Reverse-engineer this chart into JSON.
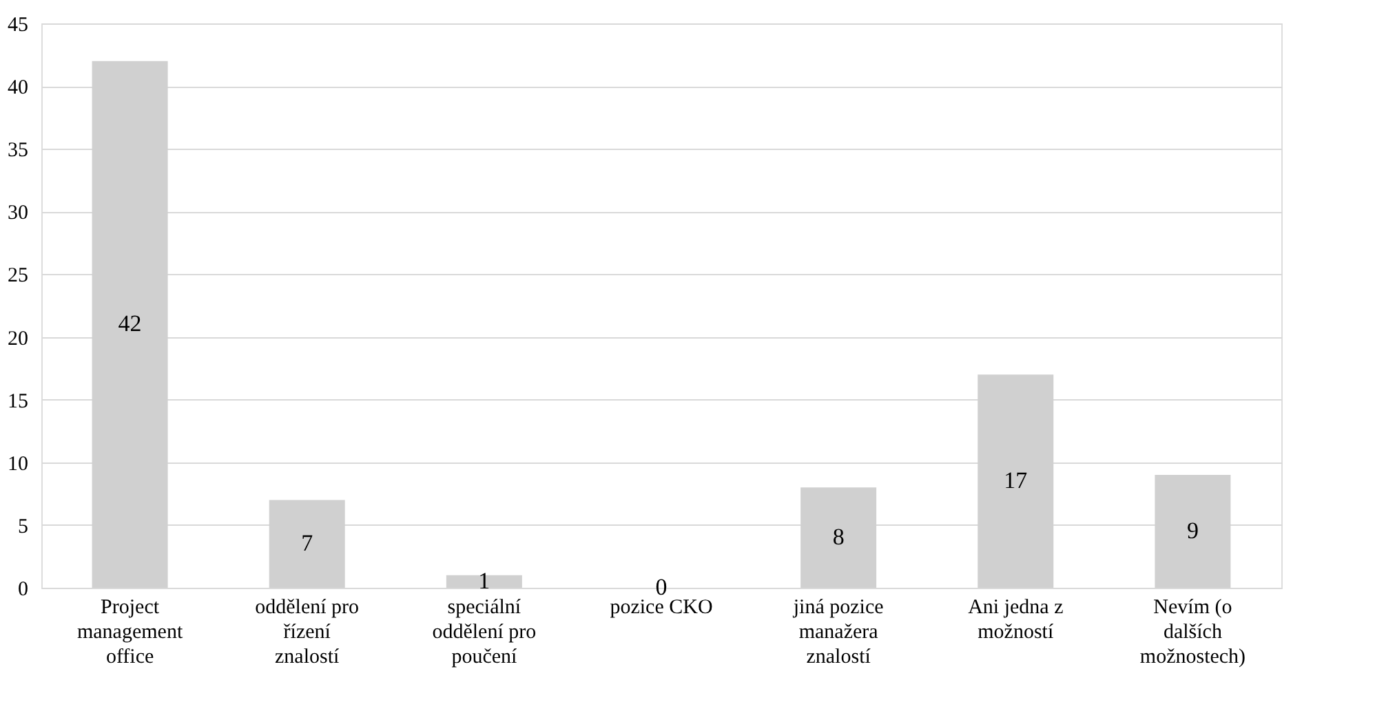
{
  "chart_data": {
    "type": "bar",
    "categories": [
      "Project\nmanagement\noffice",
      "oddělení pro\nřízení\nznalostí",
      "speciální\noddělení pro\npoučení",
      "pozice CKO",
      "jiná pozice\nmanažera\nznalostí",
      "Ani jedna z\nmožností",
      "Nevím (o\ndalších\nmožnostech)"
    ],
    "values": [
      42,
      7,
      1,
      0,
      8,
      17,
      9
    ],
    "color": "#d0d0d0",
    "ylim": [
      0,
      45
    ],
    "yticks": [
      0,
      5,
      10,
      15,
      20,
      25,
      30,
      35,
      40,
      45
    ],
    "grid": "y",
    "data_labels": true
  }
}
